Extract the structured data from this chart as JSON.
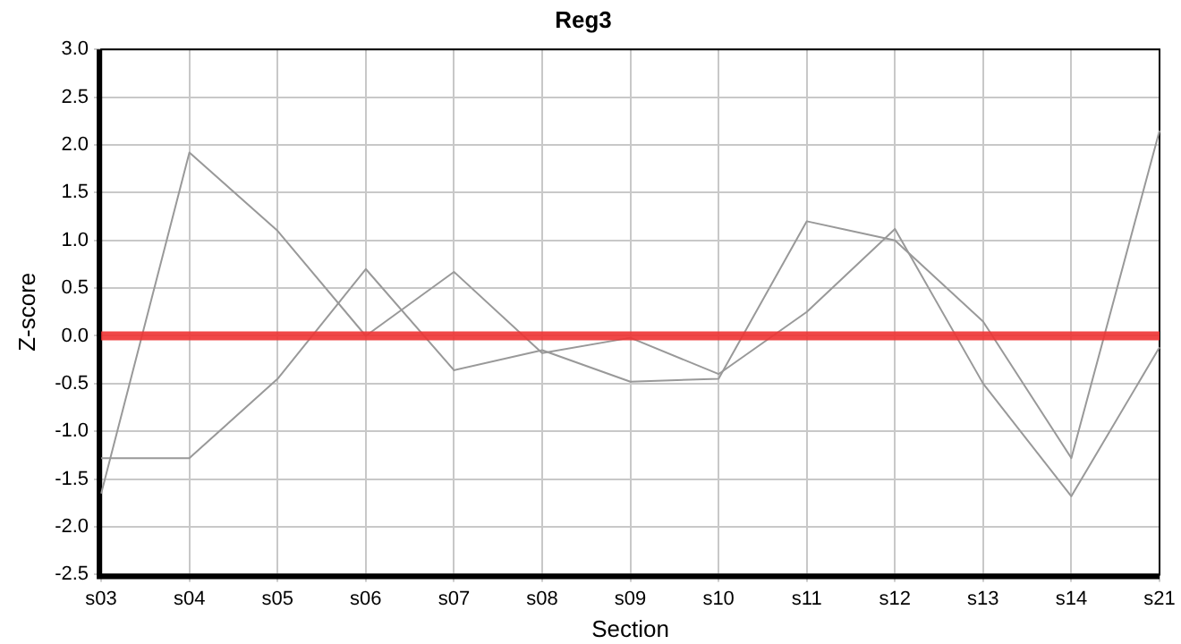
{
  "chart_data": {
    "type": "line",
    "title": "Reg3",
    "xlabel": "Section",
    "ylabel": "Z-score",
    "categories": [
      "s03",
      "s04",
      "s05",
      "s06",
      "s07",
      "s08",
      "s09",
      "s10",
      "s11",
      "s12",
      "s13",
      "s14",
      "s21"
    ],
    "series": [
      {
        "color": "#999999",
        "values": [
          -1.65,
          1.92,
          1.1,
          0.0,
          0.67,
          -0.18,
          -0.02,
          -0.4,
          0.25,
          1.12,
          -0.5,
          -1.68,
          -0.12
        ]
      },
      {
        "color": "#999999",
        "values": [
          -1.28,
          -1.28,
          -0.45,
          0.7,
          -0.36,
          -0.15,
          -0.48,
          -0.45,
          1.2,
          1.0,
          0.15,
          -1.28,
          2.15
        ]
      }
    ],
    "ylim": [
      -2.5,
      3.0
    ],
    "yticks": [
      {
        "value": -2.5,
        "label": "-2.5"
      },
      {
        "value": -2,
        "label": "-2.0"
      },
      {
        "value": -1.5,
        "label": "-1.5"
      },
      {
        "value": -1,
        "label": "-1.0"
      },
      {
        "value": -0.5,
        "label": "-0.5"
      },
      {
        "value": 0,
        "label": "0.0"
      },
      {
        "value": 0.5,
        "label": "0.5"
      },
      {
        "value": 1,
        "label": "1.0"
      },
      {
        "value": 1.5,
        "label": "1.5"
      },
      {
        "value": 2,
        "label": "2.0"
      },
      {
        "value": 2.5,
        "label": "2.5"
      },
      {
        "value": 3,
        "label": "3.0"
      }
    ],
    "ref_lines": [
      {
        "axis": "y",
        "value": 0,
        "color": "#ee3333"
      }
    ],
    "grid": true,
    "legend": false,
    "marker": "none",
    "line_style": "solid"
  }
}
